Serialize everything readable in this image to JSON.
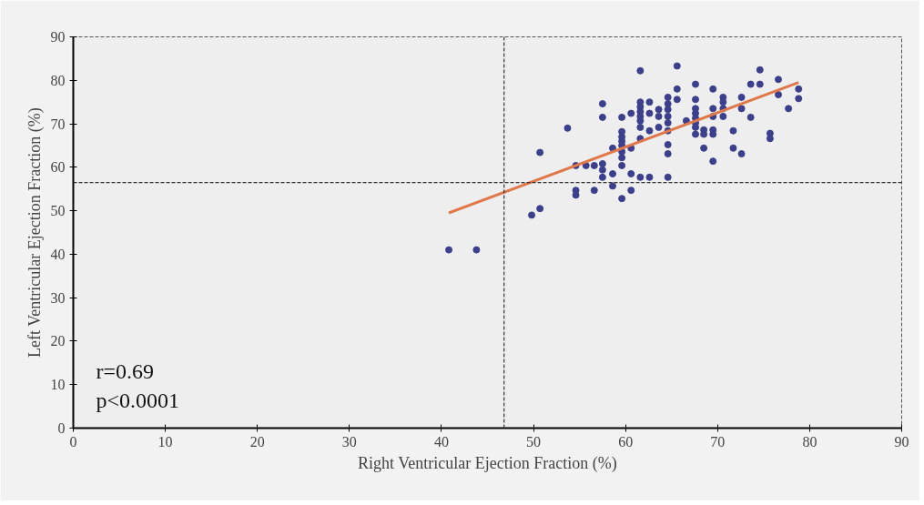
{
  "chart_data": {
    "type": "scatter",
    "xlabel": "Right Ventricular Ejection Fraction (%)",
    "ylabel": "Left Ventricular Ejection Fraction (%)",
    "xlim": [
      0,
      90
    ],
    "ylim": [
      0,
      90
    ],
    "xticks": [
      0,
      10,
      20,
      30,
      40,
      50,
      60,
      70,
      80,
      90
    ],
    "yticks": [
      0,
      10,
      20,
      30,
      40,
      50,
      60,
      70,
      80,
      90
    ],
    "grid": false,
    "marker": "circle",
    "annotations": [
      "r=0.69",
      "p<0.0001"
    ],
    "ref_lines": [
      {
        "axis": "x",
        "value": 46.8,
        "color": "#333333",
        "line_style": "dashed"
      },
      {
        "axis": "y",
        "value": 56.5,
        "color": "#333333",
        "line_style": "dashed"
      }
    ],
    "series": [
      {
        "color": "#3b3f8c",
        "x": [
          40.8,
          43.8,
          49.8,
          50.7,
          50.7,
          53.7,
          54.6,
          54.6,
          54.6,
          55.7,
          56.6,
          56.6,
          57.5,
          57.5,
          57.5,
          57.5,
          57.5,
          58.6,
          58.6,
          58.6,
          59.6,
          59.6,
          59.6,
          59.6,
          59.6,
          59.6,
          59.6,
          59.6,
          59.6,
          60.6,
          60.6,
          60.6,
          60.6,
          61.6,
          61.6,
          61.6,
          61.6,
          61.6,
          61.6,
          61.6,
          61.6,
          61.6,
          62.6,
          62.6,
          62.6,
          62.6,
          63.6,
          63.6,
          63.6,
          64.6,
          64.6,
          64.6,
          64.6,
          64.6,
          64.6,
          64.6,
          64.6,
          64.6,
          65.6,
          65.6,
          65.6,
          66.6,
          67.6,
          67.6,
          67.6,
          67.6,
          67.6,
          67.6,
          67.6,
          67.6,
          68.5,
          68.5,
          68.5,
          69.5,
          69.5,
          69.5,
          69.5,
          69.5,
          69.5,
          70.6,
          70.6,
          70.6,
          70.6,
          71.7,
          71.7,
          72.6,
          72.6,
          72.6,
          73.6,
          73.6,
          74.6,
          74.6,
          75.7,
          75.7,
          76.6,
          76.6,
          77.7,
          78.8,
          78.8
        ],
        "values": [
          41,
          41,
          49,
          50.5,
          63.4,
          69,
          60.4,
          54.7,
          53.6,
          60.4,
          60.4,
          54.7,
          74.6,
          71.5,
          60.8,
          59.4,
          57.7,
          64.4,
          58.5,
          55.7,
          71.5,
          68.2,
          67,
          66,
          65,
          63.6,
          62.2,
          60.4,
          52.8,
          72.4,
          64.4,
          58.5,
          54.7,
          82.2,
          75,
          73.9,
          72.8,
          71.7,
          70.7,
          69.2,
          66.6,
          57.7,
          75,
          72.4,
          68.4,
          57.7,
          73.3,
          71.7,
          69.2,
          76.1,
          74.6,
          73.3,
          71.7,
          70.2,
          68.4,
          65.2,
          63.1,
          57.7,
          83.3,
          78,
          75.6,
          70.7,
          79.1,
          75.6,
          73.5,
          72.4,
          71.3,
          70.2,
          69.2,
          67.6,
          68.6,
          67.6,
          64.4,
          78,
          73.5,
          71.7,
          68.6,
          67.6,
          61.4,
          76.1,
          75,
          73.5,
          71.7,
          68.4,
          64.4,
          76.1,
          73.5,
          63.1,
          79.1,
          71.5,
          82.4,
          79.1,
          67.8,
          66.6,
          80.2,
          76.7,
          73.5,
          78,
          75.8
        ]
      },
      {
        "type": "line",
        "color": "#e0784a",
        "x": [
          40.8,
          78.8
        ],
        "values": [
          49.5,
          79.5
        ],
        "line_style": "solid",
        "marker": "none"
      }
    ]
  }
}
